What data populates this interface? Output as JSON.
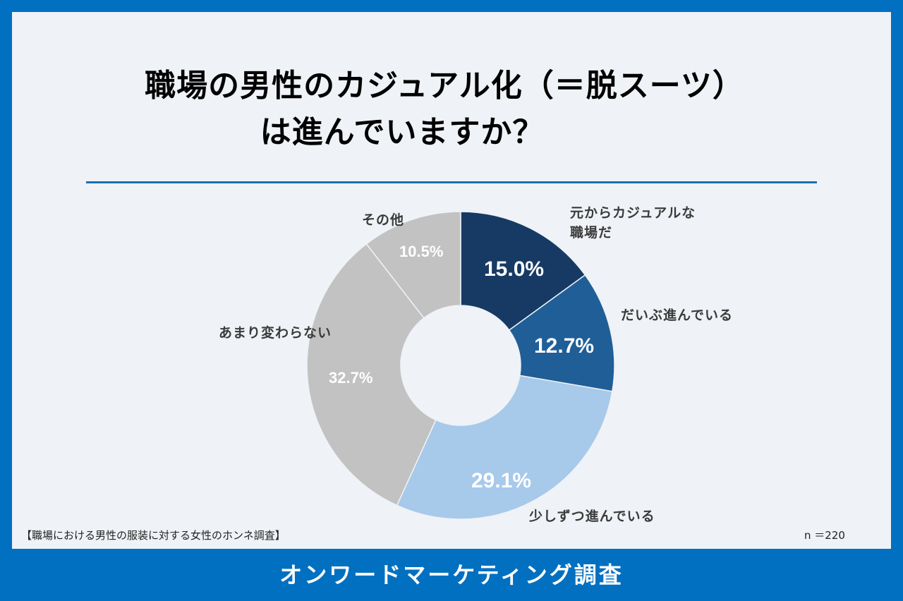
{
  "header": {
    "title_line1": "職場の男性のカジュアル化（＝脱スーツ）",
    "title_line2": "は進んでいますか？"
  },
  "labels": {
    "seg0": "元からカジュアルな",
    "seg0b": "職場だ",
    "seg1": "だいぶ進んでいる",
    "seg2": "少しずつ進んでいる",
    "seg3": "あまり変わらない",
    "seg4": "その他"
  },
  "values": {
    "seg0": "15.0%",
    "seg1": "12.7%",
    "seg2": "29.1%",
    "seg3": "32.7%",
    "seg4": "10.5%"
  },
  "footer": {
    "source": "【職場における男性の服装に対する女性のホンネ調査】",
    "n": "n ＝220",
    "brand": "オンワードマーケティング調査"
  },
  "colors": {
    "border": "#0270c0",
    "seg0": "#163a64",
    "seg1": "#205e98",
    "seg2": "#a7c9ea",
    "seg3": "#c2c2c2",
    "seg4": "#c2c2c2"
  },
  "chart_data": {
    "type": "pie",
    "subtype": "donut",
    "title": "職場の男性のカジュアル化（＝脱スーツ）は進んでいますか？",
    "categories": [
      "元からカジュアルな職場だ",
      "だいぶ進んでいる",
      "少しずつ進んでいる",
      "あまり変わらない",
      "その他"
    ],
    "values": [
      15.0,
      12.7,
      29.1,
      32.7,
      10.5
    ],
    "unit": "%",
    "n": 220,
    "source": "【職場における男性の服装に対する女性のホンネ調査】",
    "start_angle": "12 o'clock, clockwise"
  }
}
